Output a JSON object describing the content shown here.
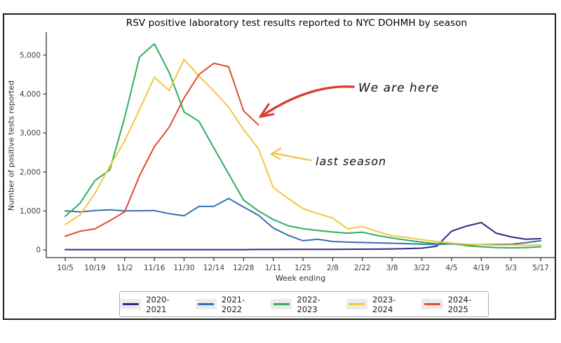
{
  "title": "RSV positive laboratory test results reported to NYC DOHMH by season",
  "annotations": {
    "we_are_here": "We are here",
    "last_season": "last season"
  },
  "colors": {
    "axis": "#333333",
    "tick_text": "#3d3d3d",
    "annotation_arrow_red": "#d6402a",
    "annotation_arrow_yellow": "#f0c14b"
  },
  "chart_data": {
    "type": "line",
    "title": "RSV positive laboratory test results reported to NYC DOHMH by season",
    "xlabel": "Week ending",
    "ylabel": "Number of positive tests reported",
    "ylim": [
      0,
      5400
    ],
    "grid": false,
    "legend_position": "bottom",
    "y_ticks": [
      0,
      1000,
      2000,
      3000,
      4000,
      5000
    ],
    "y_tick_labels": [
      "0",
      "1,000",
      "2,000",
      "3,000",
      "4,000",
      "5,000"
    ],
    "x": [
      "10/5",
      "10/12",
      "10/19",
      "10/26",
      "11/2",
      "11/9",
      "11/16",
      "11/23",
      "11/30",
      "12/7",
      "12/14",
      "12/21",
      "12/28",
      "1/4",
      "1/11",
      "1/18",
      "1/25",
      "2/1",
      "2/8",
      "2/15",
      "2/22",
      "3/1",
      "3/8",
      "3/15",
      "3/22",
      "3/29",
      "4/5",
      "4/12",
      "4/19",
      "4/26",
      "5/3",
      "5/10",
      "5/17"
    ],
    "x_tick_every": 2,
    "series": [
      {
        "name": "2020-2021",
        "color": "#332a84",
        "values": [
          8,
          8,
          8,
          8,
          8,
          8,
          8,
          8,
          8,
          8,
          8,
          8,
          8,
          10,
          10,
          12,
          12,
          14,
          15,
          16,
          18,
          20,
          25,
          35,
          45,
          95,
          480,
          610,
          700,
          430,
          335,
          275,
          290
        ]
      },
      {
        "name": "2021-2022",
        "color": "#3471b0",
        "values": [
          1000,
          975,
          1010,
          1030,
          1000,
          1005,
          1010,
          930,
          875,
          1115,
          1115,
          1320,
          1100,
          890,
          560,
          375,
          235,
          275,
          215,
          200,
          190,
          180,
          170,
          160,
          150,
          140,
          155,
          130,
          140,
          138,
          145,
          185,
          235
        ]
      },
      {
        "name": "2022-2023",
        "color": "#2fae5f",
        "values": [
          860,
          1200,
          1780,
          2050,
          3400,
          4950,
          5290,
          4550,
          3540,
          3300,
          2620,
          1950,
          1280,
          1000,
          780,
          620,
          545,
          500,
          460,
          430,
          455,
          370,
          305,
          250,
          198,
          160,
          170,
          110,
          80,
          58,
          52,
          60,
          80
        ]
      },
      {
        "name": "2023-2024",
        "color": "#f3c73e",
        "values": [
          650,
          900,
          1450,
          2150,
          2800,
          3600,
          4430,
          4090,
          4890,
          4460,
          4080,
          3660,
          3090,
          2600,
          1600,
          1320,
          1060,
          930,
          820,
          540,
          600,
          470,
          365,
          320,
          260,
          215,
          175,
          150,
          135,
          120,
          125,
          118,
          125
        ]
      },
      {
        "name": "2024-2025",
        "color": "#e14b2e",
        "values": [
          350,
          480,
          540,
          750,
          980,
          1900,
          2650,
          3150,
          3900,
          4500,
          4790,
          4700,
          3570,
          3210,
          null,
          null,
          null,
          null,
          null,
          null,
          null,
          null,
          null,
          null,
          null,
          null,
          null,
          null,
          null,
          null,
          null,
          null,
          null
        ]
      }
    ]
  }
}
